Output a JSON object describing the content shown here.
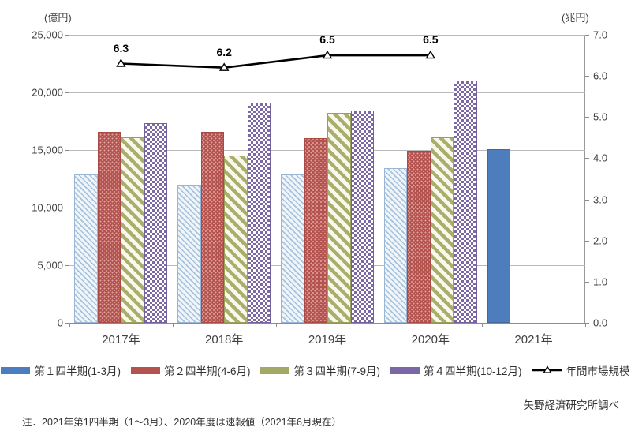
{
  "chart_data": {
    "type": "bar+line",
    "categories": [
      "2017年",
      "2018年",
      "2019年",
      "2020年",
      "2021年"
    ],
    "series": [
      {
        "name": "第１四半期(1-3月)",
        "values": [
          12900,
          12000,
          12900,
          13400,
          15100
        ],
        "pattern": "hatch-blue",
        "legend_color": "#4d7dbd",
        "solid_indices": [
          4
        ]
      },
      {
        "name": "第２四半期(4-6月)",
        "values": [
          16600,
          16600,
          16000,
          14900,
          null
        ],
        "pattern": "dots-red",
        "legend_color": "#b4524e",
        "solid_indices": []
      },
      {
        "name": "第３四半期(7-9月)",
        "values": [
          16100,
          14500,
          18200,
          16100,
          null
        ],
        "pattern": "stripe-olive",
        "legend_color": "#a3a964",
        "solid_indices": []
      },
      {
        "name": "第４四半期(10-12月)",
        "values": [
          17300,
          19100,
          18400,
          21000,
          null
        ],
        "pattern": "check-purple",
        "legend_color": "#7a68a6",
        "solid_indices": []
      }
    ],
    "line_series": {
      "name": "年間市場規模",
      "values": [
        6.3,
        6.2,
        6.5,
        6.5,
        null
      ],
      "labels": [
        "6.3",
        "6.2",
        "6.5",
        "6.5",
        ""
      ],
      "color": "#000000"
    },
    "left_axis": {
      "title": "(億円)",
      "min": 0,
      "max": 25000,
      "ticks": [
        "25,000",
        "20,000",
        "15,000",
        "10,000",
        "5,000",
        "0"
      ]
    },
    "right_axis": {
      "title": "(兆円)",
      "min": 0,
      "max": 7.0,
      "ticks": [
        "7.0",
        "6.0",
        "5.0",
        "4.0",
        "3.0",
        "2.0",
        "1.0",
        "0.0"
      ]
    },
    "grid": "horizontal-on",
    "legend_position": "bottom"
  },
  "note": "注．2021年第1四半期（1～3月）、2020年度は速報値（2021年6月現在）",
  "source": "矢野経済研究所調べ",
  "colors": {
    "grid": "#b9b9b9",
    "axis": "#8c8c8c",
    "line": "#000000"
  }
}
